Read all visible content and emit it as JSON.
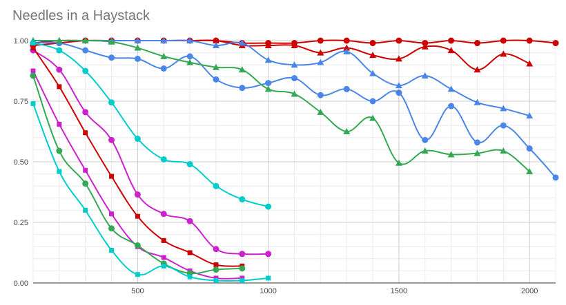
{
  "chart_data": {
    "type": "line",
    "title": "Needles in a Haystack",
    "xlabel": "",
    "ylabel": "",
    "xlim": [
      100,
      2100
    ],
    "ylim": [
      0,
      1
    ],
    "x_ticks": [
      500,
      1000,
      1500,
      2000
    ],
    "x_tick_labels": [
      "500",
      "1000",
      "1500",
      "2000"
    ],
    "y_ticks": [
      0,
      0.25,
      0.5,
      0.75,
      1
    ],
    "y_tick_labels": [
      "0.00",
      "0.25",
      "0.50",
      "0.75",
      "1.00"
    ],
    "grid": true,
    "legend": "none",
    "series": [
      {
        "color": "#cc0000",
        "marker": "circle",
        "x": [
          100,
          200,
          300,
          400,
          500,
          600,
          700,
          800,
          900,
          1000,
          1100,
          1200,
          1300,
          1400,
          1500,
          1600,
          1700,
          1800,
          1900,
          2000,
          2100
        ],
        "y": [
          0.98,
          0.99,
          1.0,
          1.0,
          1.0,
          1.0,
          1.0,
          1.0,
          0.99,
          0.99,
          0.99,
          1.0,
          1.0,
          0.99,
          1.0,
          0.99,
          1.0,
          0.99,
          1.0,
          1.0,
          0.99
        ]
      },
      {
        "color": "#cc0000",
        "marker": "triangle",
        "x": [
          100,
          200,
          300,
          400,
          500,
          600,
          700,
          800,
          900,
          1000,
          1100,
          1200,
          1300,
          1400,
          1500,
          1600,
          1700,
          1800,
          1900,
          2000
        ],
        "y": [
          0.99,
          1.0,
          1.0,
          1.0,
          1.0,
          1.0,
          1.0,
          1.0,
          0.98,
          0.98,
          0.98,
          0.95,
          0.97,
          0.94,
          0.925,
          0.975,
          0.96,
          0.88,
          0.945,
          0.905
        ]
      },
      {
        "color": "#4a86e8",
        "marker": "triangle",
        "x": [
          100,
          200,
          300,
          400,
          500,
          600,
          700,
          800,
          900,
          1000,
          1100,
          1200,
          1300,
          1400,
          1500,
          1600,
          1700,
          1800,
          1900,
          2000
        ],
        "y": [
          1.0,
          1.0,
          1.0,
          1.0,
          1.0,
          1.0,
          1.0,
          0.98,
          0.99,
          0.92,
          0.9,
          0.91,
          0.955,
          0.865,
          0.815,
          0.855,
          0.8,
          0.745,
          0.72,
          0.69
        ]
      },
      {
        "color": "#4a86e8",
        "marker": "circle",
        "x": [
          100,
          200,
          300,
          400,
          500,
          600,
          700,
          800,
          900,
          1000,
          1100,
          1200,
          1300,
          1400,
          1500,
          1600,
          1700,
          1800,
          1900,
          2000,
          2100
        ],
        "y": [
          0.99,
          0.99,
          0.96,
          0.93,
          0.925,
          0.885,
          0.935,
          0.84,
          0.805,
          0.825,
          0.845,
          0.775,
          0.8,
          0.75,
          0.785,
          0.59,
          0.73,
          0.58,
          0.65,
          0.555,
          0.435
        ]
      },
      {
        "color": "#34a853",
        "marker": "triangle",
        "x": [
          100,
          200,
          300,
          400,
          500,
          600,
          700,
          800,
          900,
          1000,
          1100,
          1200,
          1300,
          1400,
          1500,
          1600,
          1700,
          1800,
          1900,
          2000
        ],
        "y": [
          1.0,
          1.0,
          1.0,
          0.995,
          0.97,
          0.935,
          0.91,
          0.89,
          0.88,
          0.8,
          0.78,
          0.705,
          0.625,
          0.68,
          0.495,
          0.545,
          0.53,
          0.535,
          0.545,
          0.46
        ]
      },
      {
        "color": "#00cccc",
        "marker": "circle",
        "x": [
          100,
          200,
          300,
          400,
          500,
          600,
          700,
          800,
          900,
          1000
        ],
        "y": [
          0.99,
          0.96,
          0.875,
          0.745,
          0.595,
          0.51,
          0.49,
          0.4,
          0.345,
          0.315
        ]
      },
      {
        "color": "#cc22cc",
        "marker": "circle",
        "x": [
          100,
          200,
          300,
          400,
          500,
          600,
          700,
          800,
          900,
          1000
        ],
        "y": [
          0.96,
          0.88,
          0.705,
          0.59,
          0.365,
          0.285,
          0.255,
          0.14,
          0.12,
          0.12
        ]
      },
      {
        "color": "#cc0000",
        "marker": "square",
        "x": [
          100,
          200,
          300,
          400,
          500,
          600,
          700,
          800,
          900
        ],
        "y": [
          0.97,
          0.81,
          0.62,
          0.44,
          0.275,
          0.175,
          0.125,
          0.075,
          0.07
        ]
      },
      {
        "color": "#cc22cc",
        "marker": "square",
        "x": [
          100,
          200,
          300,
          400,
          500,
          600,
          700,
          800,
          900
        ],
        "y": [
          0.875,
          0.655,
          0.465,
          0.285,
          0.15,
          0.105,
          0.05,
          0.02,
          0.02
        ]
      },
      {
        "color": "#34a853",
        "marker": "circle",
        "x": [
          100,
          200,
          300,
          400,
          500,
          600,
          700,
          800,
          900
        ],
        "y": [
          0.855,
          0.545,
          0.41,
          0.225,
          0.155,
          0.08,
          0.04,
          0.055,
          0.06
        ]
      },
      {
        "color": "#00cccc",
        "marker": "square",
        "x": [
          100,
          200,
          300,
          400,
          500,
          600,
          700,
          800,
          900,
          1000
        ],
        "y": [
          0.74,
          0.46,
          0.3,
          0.135,
          0.035,
          0.07,
          0.025,
          0.01,
          0.01,
          0.02
        ]
      }
    ]
  }
}
